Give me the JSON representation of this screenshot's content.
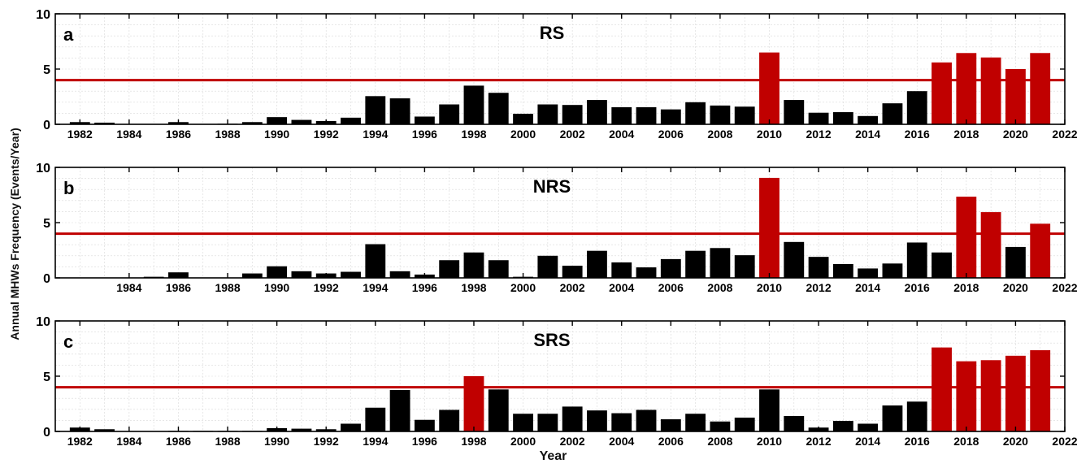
{
  "threshold_color": "#c00000",
  "bar_color": "#000000",
  "highlight_color": "#c00000",
  "ylabel": "Annual MHWs Frequency (Events/Year)",
  "xlabel": "Year",
  "chart_data": [
    {
      "type": "bar",
      "panel_letter": "a",
      "title": "RS",
      "xlim": [
        1981,
        2022
      ],
      "ylim": [
        0,
        10
      ],
      "yticks": [
        0,
        5,
        10
      ],
      "xticks": [
        "1982",
        "1984",
        "1986",
        "1988",
        "1990",
        "1992",
        "1994",
        "1996",
        "1998",
        "2000",
        "2002",
        "2004",
        "2006",
        "2008",
        "2010",
        "2012",
        "2014",
        "2016",
        "2018",
        "2020",
        "2022"
      ],
      "threshold": 4,
      "grid": true,
      "x": [
        1982,
        1983,
        1984,
        1985,
        1986,
        1987,
        1988,
        1989,
        1990,
        1991,
        1992,
        1993,
        1994,
        1995,
        1996,
        1997,
        1998,
        1999,
        2000,
        2001,
        2002,
        2003,
        2004,
        2005,
        2006,
        2007,
        2008,
        2009,
        2010,
        2011,
        2012,
        2013,
        2014,
        2015,
        2016,
        2017,
        2018,
        2019,
        2020,
        2021
      ],
      "values": [
        0.2,
        0.15,
        0,
        0,
        0.2,
        0,
        0.05,
        0.2,
        0.65,
        0.4,
        0.3,
        0.6,
        2.55,
        2.35,
        0.7,
        1.8,
        3.5,
        2.85,
        0.95,
        1.8,
        1.75,
        2.2,
        1.55,
        1.55,
        1.35,
        2.0,
        1.7,
        1.6,
        6.5,
        2.2,
        1.05,
        1.1,
        0.75,
        1.9,
        3.0,
        5.6,
        6.45,
        6.05,
        5.0,
        6.45
      ]
    },
    {
      "type": "bar",
      "panel_letter": "b",
      "title": "NRS",
      "xlim": [
        1983,
        2022
      ],
      "ylim": [
        0,
        10
      ],
      "yticks": [
        0,
        5,
        10
      ],
      "xticks": [
        "1984",
        "1986",
        "1988",
        "1990",
        "1992",
        "1994",
        "1996",
        "1998",
        "2000",
        "2002",
        "2004",
        "2006",
        "2008",
        "2010",
        "2012",
        "2014",
        "2016",
        "2018",
        "2020",
        "2022"
      ],
      "threshold": 4,
      "grid": true,
      "x": [
        1984,
        1985,
        1986,
        1987,
        1988,
        1989,
        1990,
        1991,
        1992,
        1993,
        1994,
        1995,
        1996,
        1997,
        1998,
        1999,
        2000,
        2001,
        2002,
        2003,
        2004,
        2005,
        2006,
        2007,
        2008,
        2009,
        2010,
        2011,
        2012,
        2013,
        2014,
        2015,
        2016,
        2017,
        2018,
        2019,
        2020,
        2021
      ],
      "values": [
        0,
        0.1,
        0.5,
        0,
        0,
        0.4,
        1.05,
        0.6,
        0.4,
        0.55,
        3.05,
        0.6,
        0.3,
        1.6,
        2.3,
        1.6,
        0.1,
        2.0,
        1.1,
        2.45,
        1.4,
        0.95,
        1.7,
        2.45,
        2.7,
        2.05,
        9.05,
        3.25,
        1.9,
        1.25,
        0.85,
        1.3,
        3.2,
        2.3,
        7.35,
        5.95,
        2.8,
        4.9
      ]
    },
    {
      "type": "bar",
      "panel_letter": "c",
      "title": "SRS",
      "xlim": [
        1981,
        2022
      ],
      "ylim": [
        0,
        10
      ],
      "yticks": [
        0,
        5,
        10
      ],
      "xticks": [
        "1982",
        "1984",
        "1986",
        "1988",
        "1990",
        "1992",
        "1994",
        "1996",
        "1998",
        "2000",
        "2002",
        "2004",
        "2006",
        "2008",
        "2010",
        "2012",
        "2014",
        "2016",
        "2018",
        "2020",
        "2022"
      ],
      "threshold": 4,
      "grid": true,
      "x": [
        1982,
        1983,
        1984,
        1985,
        1986,
        1987,
        1988,
        1989,
        1990,
        1991,
        1992,
        1993,
        1994,
        1995,
        1996,
        1997,
        1998,
        1999,
        2000,
        2001,
        2002,
        2003,
        2004,
        2005,
        2006,
        2007,
        2008,
        2009,
        2010,
        2011,
        2012,
        2013,
        2014,
        2015,
        2016,
        2017,
        2018,
        2019,
        2020,
        2021
      ],
      "values": [
        0.35,
        0.2,
        0,
        0,
        0.05,
        0.05,
        0.05,
        0.05,
        0.3,
        0.25,
        0.2,
        0.7,
        2.15,
        3.75,
        1.05,
        1.95,
        5.0,
        3.8,
        1.6,
        1.6,
        2.25,
        1.9,
        1.65,
        1.95,
        1.1,
        1.6,
        0.9,
        1.25,
        3.8,
        1.4,
        0.35,
        0.95,
        0.7,
        2.35,
        2.7,
        7.6,
        6.35,
        6.45,
        6.85,
        7.35
      ]
    }
  ]
}
